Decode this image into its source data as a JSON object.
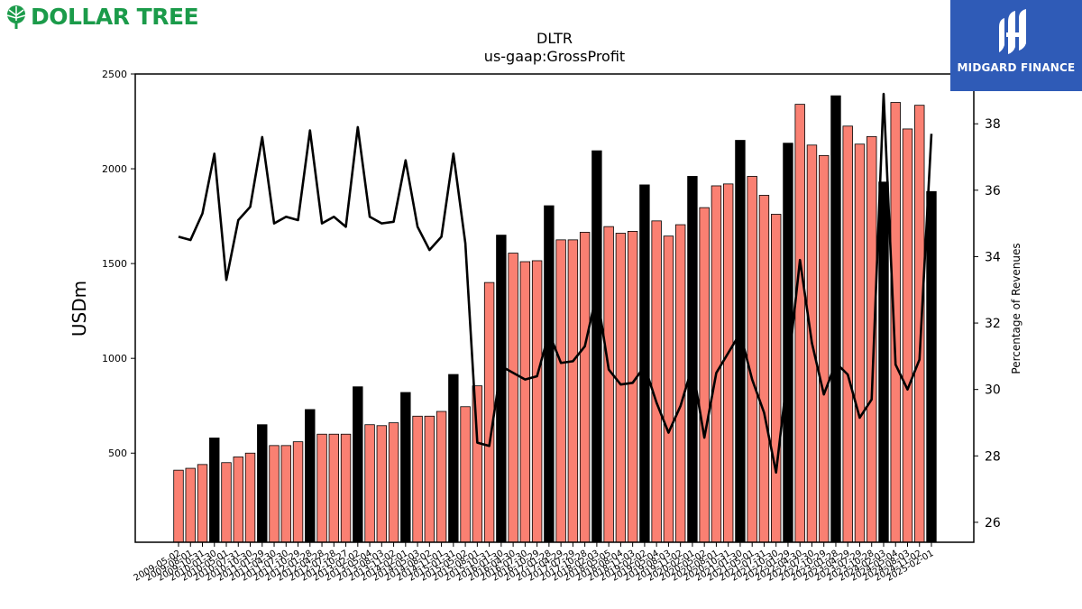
{
  "logos": {
    "left": "DOLLAR TREE",
    "right": "MIDGARD FINANCE"
  },
  "colors": {
    "quarter_bar": "#fa8072",
    "annual_bar": "#000000",
    "line": "#000000",
    "logo_green": "#1b9b4a",
    "logo_blue": "#2f5bb7"
  },
  "chart_data": {
    "type": "bar",
    "title": "DLTR",
    "subtitle": "us-gaap:GrossProfit",
    "ylabel": "USDm",
    "y2label": "Percentage of Revenues",
    "ylim": [
      30,
      2500
    ],
    "y2lim": [
      25.4,
      39.5
    ],
    "yticks": [
      500,
      1000,
      1500,
      2000,
      2500
    ],
    "y2ticks": [
      26,
      28,
      30,
      32,
      34,
      36,
      38
    ],
    "grid": false,
    "categories": [
      "2009-05-02",
      "2009-08-01",
      "2009-10-31",
      "2010-01-30",
      "2010-05-01",
      "2010-07-31",
      "2010-10-30",
      "2011-01-29",
      "2011-04-30",
      "2011-07-30",
      "2011-10-29",
      "2012-01-28",
      "2012-04-28",
      "2012-07-28",
      "2012-10-27",
      "2013-02-02",
      "2013-05-04",
      "2013-08-03",
      "2013-11-02",
      "2014-02-01",
      "2014-05-03",
      "2014-08-02",
      "2014-11-01",
      "2015-01-31",
      "2015-05-02",
      "2015-08-01",
      "2015-10-31",
      "2016-01-30",
      "2016-04-30",
      "2016-07-30",
      "2016-10-29",
      "2017-01-28",
      "2017-04-29",
      "2017-07-29",
      "2017-10-28",
      "2018-02-03",
      "2018-05-05",
      "2018-08-04",
      "2018-11-03",
      "2019-02-02",
      "2019-05-04",
      "2019-08-03",
      "2019-11-02",
      "2020-02-01",
      "2020-05-02",
      "2020-08-01",
      "2020-10-31",
      "2021-01-30",
      "2021-05-01",
      "2021-07-31",
      "2021-10-30",
      "2022-01-29",
      "2022-04-30",
      "2022-07-30",
      "2022-10-29",
      "2023-01-28",
      "2023-04-29",
      "2023-07-29",
      "2023-10-28",
      "2024-02-03",
      "2024-05-04",
      "2024-08-03",
      "2024-11-02",
      "2025-02-01"
    ],
    "xtick_labels": [
      "2009-05-02",
      "2009-08-01",
      "2009-10-31",
      "2010-01-30",
      "2010-05-01",
      "2010-07-31",
      "2010-10-30",
      "2011-01-29",
      "2011-04-30",
      "2011-07-30",
      "2011-10-29",
      "2012-01-28",
      "2012-04-28",
      "2012-07-28",
      "2012-10-27",
      "2013-02-02",
      "2013-05-04",
      "2013-08-03",
      "2013-11-02",
      "2014-02-01",
      "2014-05-03",
      "2014-08-02",
      "2014-11-01",
      "2015-01-31",
      "2015-05-02",
      "2015-08-01",
      "2015-10-31",
      "2016-01-30",
      "2016-04-30",
      "2016-07-30",
      "2016-10-29",
      "2017-01-28",
      "2017-04-29",
      "2017-07-29",
      "2017-10-28",
      "2018-02-03",
      "2018-05-05",
      "2018-08-04",
      "2018-11-03",
      "2019-02-02",
      "2019-05-04",
      "2019-08-03",
      "2019-11-02",
      "2020-02-01",
      "2020-05-02",
      "2020-08-01",
      "2020-10-31",
      "2021-01-30",
      "2021-05-01",
      "2021-07-31",
      "2021-10-30",
      "2022-01-29",
      "2022-04-30",
      "2022-07-30",
      "2022-10-29",
      "2023-01-28",
      "2023-04-29",
      "2023-07-29",
      "2023-10-28",
      "2024-02-03",
      "2024-05-04",
      "2024-08-03",
      "2024-11-02",
      "2025-02-01"
    ],
    "annual_flags": [
      0,
      0,
      0,
      1,
      0,
      0,
      0,
      1,
      0,
      0,
      0,
      1,
      0,
      0,
      0,
      1,
      0,
      0,
      0,
      1,
      0,
      0,
      0,
      1,
      0,
      0,
      0,
      1,
      0,
      0,
      0,
      1,
      0,
      0,
      0,
      1,
      0,
      0,
      0,
      1,
      0,
      0,
      0,
      1,
      0,
      0,
      0,
      1,
      0,
      0,
      0,
      1,
      0,
      0,
      0,
      1,
      0,
      0,
      0,
      1,
      0,
      0,
      0,
      1
    ],
    "series": [
      {
        "type": "bar",
        "values": [
          410,
          420,
          440,
          580,
          450,
          480,
          500,
          650,
          540,
          540,
          560,
          730,
          600,
          600,
          600,
          850,
          650,
          645,
          660,
          820,
          695,
          695,
          720,
          915,
          745,
          855,
          1400,
          1650,
          1555,
          1510,
          1515,
          1805,
          1625,
          1625,
          1665,
          2095,
          1695,
          1660,
          1670,
          1915,
          1725,
          1645,
          1705,
          1960,
          1795,
          1910,
          1920,
          2150,
          1960,
          1860,
          1760,
          2135,
          2340,
          2125,
          2070,
          2385,
          2225,
          2130,
          2170,
          1930,
          2350,
          2210,
          2335,
          1880
        ]
      },
      {
        "type": "line",
        "axis": "right",
        "values": [
          34.6,
          34.5,
          35.3,
          37.1,
          33.3,
          35.1,
          35.5,
          37.6,
          35.0,
          35.2,
          35.1,
          37.8,
          35.0,
          35.2,
          34.9,
          37.9,
          35.2,
          35.0,
          35.05,
          36.9,
          34.9,
          34.2,
          34.6,
          37.1,
          34.4,
          28.4,
          28.3,
          30.7,
          30.5,
          30.3,
          30.4,
          31.7,
          30.8,
          30.85,
          31.3,
          32.9,
          30.6,
          30.15,
          30.2,
          30.7,
          29.6,
          28.7,
          29.5,
          30.7,
          28.55,
          30.5,
          31.1,
          31.7,
          30.3,
          29.3,
          27.5,
          30.6,
          33.9,
          31.4,
          29.85,
          30.8,
          30.45,
          29.15,
          29.7,
          38.9,
          30.75,
          30.0,
          30.9,
          37.7
        ]
      }
    ]
  }
}
